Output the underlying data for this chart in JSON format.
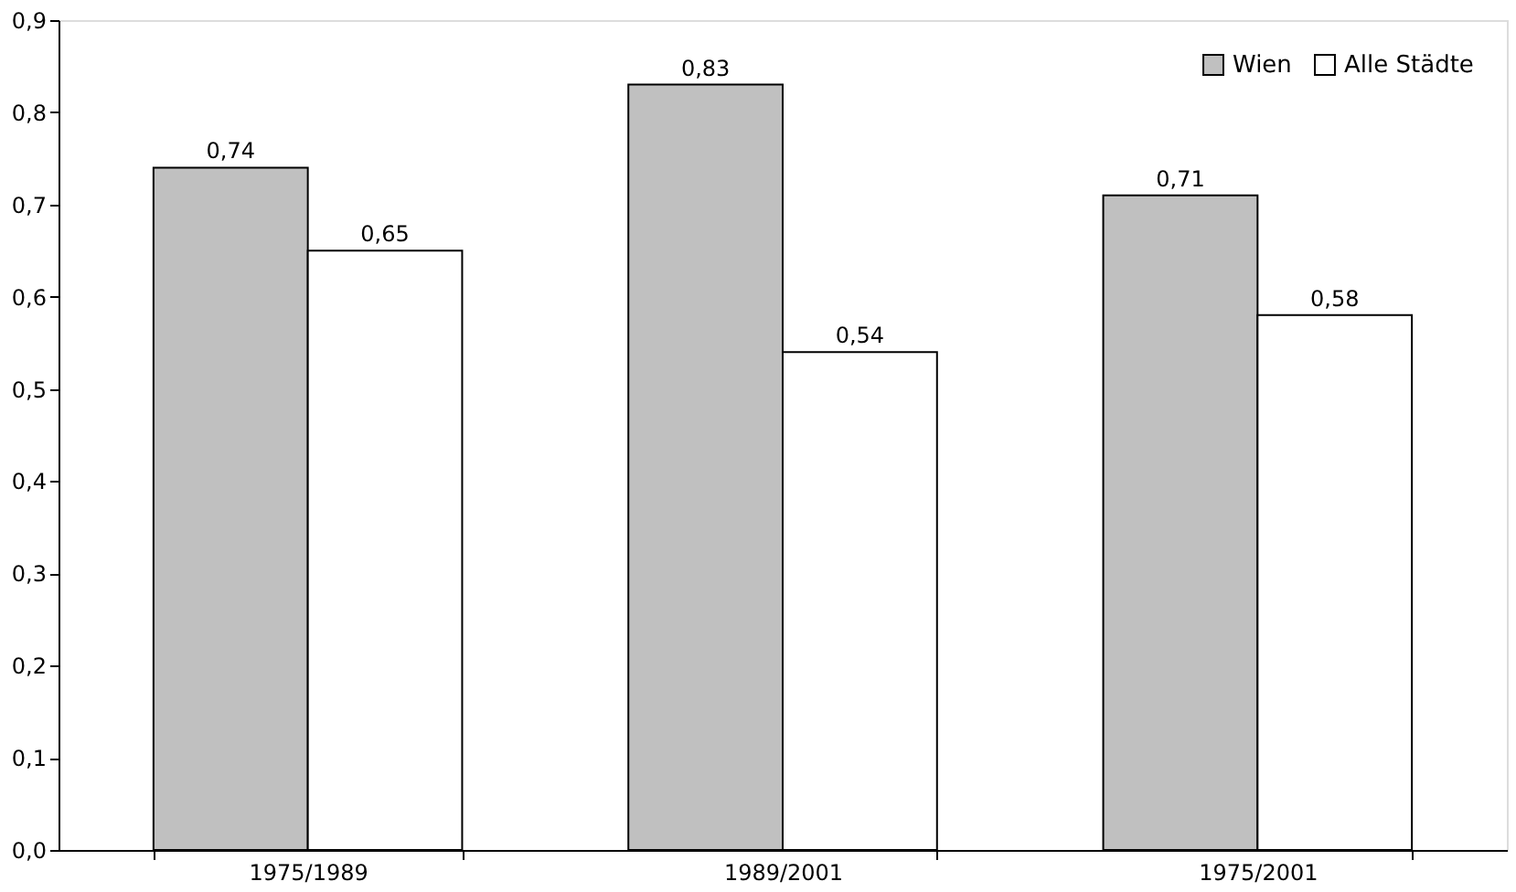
{
  "chart_data": {
    "type": "bar",
    "categories": [
      "1975/1989",
      "1989/2001",
      "1975/2001"
    ],
    "series": [
      {
        "name": "Wien",
        "color": "#c0c0c0",
        "values": [
          0.74,
          0.83,
          0.71
        ],
        "value_labels": [
          "0,74",
          "0,83",
          "0,71"
        ]
      },
      {
        "name": "Alle Städte",
        "color": "#ffffff",
        "values": [
          0.65,
          0.54,
          0.58
        ],
        "value_labels": [
          "0,65",
          "0,54",
          "0,58"
        ]
      }
    ],
    "ylim": [
      0,
      0.9
    ],
    "yticks": [
      {
        "value": 0,
        "label": "0,0"
      },
      {
        "value": 0.1,
        "label": "0,1"
      },
      {
        "value": 0.2,
        "label": "0,2"
      },
      {
        "value": 0.3,
        "label": "0,3"
      },
      {
        "value": 0.4,
        "label": "0,4"
      },
      {
        "value": 0.5,
        "label": "0,5"
      },
      {
        "value": 0.6,
        "label": "0,6"
      },
      {
        "value": 0.7,
        "label": "0,7"
      },
      {
        "value": 0.8,
        "label": "0,8"
      },
      {
        "value": 0.9,
        "label": "0,9"
      }
    ],
    "legend": "top right",
    "grid": false
  }
}
